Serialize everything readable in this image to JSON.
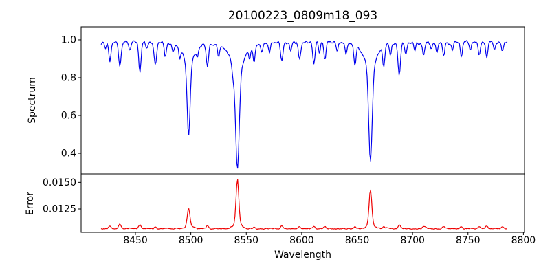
{
  "chart_data": {
    "type": "line",
    "title": "20100223_0809m18_093",
    "description": "Two stacked panels sharing one wavelength axis: a normalized stellar spectrum (blue) showing the Ca II infrared triplet absorption lines at 8498, 8542 and 8662 Angstroms plus many weak metal lines, and the corresponding error spectrum (red) with noise peaks at the strong line cores.",
    "x": {
      "label": "Wavelength",
      "lim": [
        8401,
        8801
      ],
      "data_range": [
        8419,
        8786
      ],
      "ticks": [
        {
          "v": 8450,
          "label": "8450"
        },
        {
          "v": 8500,
          "label": "8500"
        },
        {
          "v": 8550,
          "label": "8550"
        },
        {
          "v": 8600,
          "label": "8600"
        },
        {
          "v": 8650,
          "label": "8650"
        },
        {
          "v": 8700,
          "label": "8700"
        },
        {
          "v": 8750,
          "label": "8750"
        },
        {
          "v": 8800,
          "label": "8800"
        }
      ]
    },
    "panels": [
      {
        "ylabel": "Spectrum",
        "color": "#0000ee",
        "ylim": [
          0.291,
          1.069
        ],
        "yticks": [
          {
            "v": 1.0,
            "label": "1.0"
          },
          {
            "v": 0.8,
            "label": "0.8"
          },
          {
            "v": 0.6,
            "label": "0.6"
          },
          {
            "v": 0.4,
            "label": "0.4"
          }
        ],
        "continuum": 0.985,
        "noise": {
          "amp_sym": 0.009,
          "amp_dip": 0.013,
          "offset": 0.0045
        },
        "absorption_lines": [
          {
            "c": 8498,
            "d": 0.37,
            "w": 1.3
          },
          {
            "c": 8498,
            "d": 0.09,
            "w": 4.0
          },
          {
            "c": 8498,
            "d": 0.03,
            "w": 9.0
          },
          {
            "c": 8542,
            "d": 0.51,
            "w": 1.6
          },
          {
            "c": 8542,
            "d": 0.12,
            "w": 5.0
          },
          {
            "c": 8542,
            "d": 0.04,
            "w": 12.0
          },
          {
            "c": 8662,
            "d": 0.49,
            "w": 1.5
          },
          {
            "c": 8662,
            "d": 0.1,
            "w": 4.5
          },
          {
            "c": 8662,
            "d": 0.04,
            "w": 10.0
          },
          {
            "c": 8423,
            "d": 0.04,
            "w": 0.8
          },
          {
            "c": 8427,
            "d": 0.1,
            "w": 0.9
          },
          {
            "c": 8436,
            "d": 0.13,
            "w": 1.0
          },
          {
            "c": 8445,
            "d": 0.05,
            "w": 0.8
          },
          {
            "c": 8454,
            "d": 0.16,
            "w": 1.0
          },
          {
            "c": 8460,
            "d": 0.04,
            "w": 0.8
          },
          {
            "c": 8468,
            "d": 0.12,
            "w": 1.0
          },
          {
            "c": 8477,
            "d": 0.07,
            "w": 0.9
          },
          {
            "c": 8484,
            "d": 0.04,
            "w": 0.8
          },
          {
            "c": 8490,
            "d": 0.05,
            "w": 0.8
          },
          {
            "c": 8506,
            "d": 0.05,
            "w": 0.9
          },
          {
            "c": 8515,
            "d": 0.12,
            "w": 1.0
          },
          {
            "c": 8525,
            "d": 0.06,
            "w": 0.8
          },
          {
            "c": 8538,
            "d": 0.05,
            "w": 0.9
          },
          {
            "c": 8553,
            "d": 0.06,
            "w": 0.8
          },
          {
            "c": 8557,
            "d": 0.09,
            "w": 0.9
          },
          {
            "c": 8564,
            "d": 0.04,
            "w": 0.8
          },
          {
            "c": 8571,
            "d": 0.05,
            "w": 0.8
          },
          {
            "c": 8582,
            "d": 0.1,
            "w": 1.0
          },
          {
            "c": 8590,
            "d": 0.04,
            "w": 0.8
          },
          {
            "c": 8598,
            "d": 0.09,
            "w": 1.0
          },
          {
            "c": 8611,
            "d": 0.11,
            "w": 1.0
          },
          {
            "c": 8616,
            "d": 0.06,
            "w": 0.8
          },
          {
            "c": 8621,
            "d": 0.09,
            "w": 0.9
          },
          {
            "c": 8632,
            "d": 0.04,
            "w": 0.8
          },
          {
            "c": 8640,
            "d": 0.05,
            "w": 0.8
          },
          {
            "c": 8648,
            "d": 0.1,
            "w": 1.0
          },
          {
            "c": 8674,
            "d": 0.11,
            "w": 1.0
          },
          {
            "c": 8680,
            "d": 0.06,
            "w": 0.8
          },
          {
            "c": 8688,
            "d": 0.17,
            "w": 1.1
          },
          {
            "c": 8694,
            "d": 0.06,
            "w": 0.9
          },
          {
            "c": 8702,
            "d": 0.05,
            "w": 0.8
          },
          {
            "c": 8710,
            "d": 0.07,
            "w": 0.9
          },
          {
            "c": 8717,
            "d": 0.04,
            "w": 0.8
          },
          {
            "c": 8722,
            "d": 0.06,
            "w": 0.9
          },
          {
            "c": 8728,
            "d": 0.08,
            "w": 0.9
          },
          {
            "c": 8736,
            "d": 0.05,
            "w": 0.8
          },
          {
            "c": 8744,
            "d": 0.08,
            "w": 0.9
          },
          {
            "c": 8752,
            "d": 0.04,
            "w": 0.8
          },
          {
            "c": 8760,
            "d": 0.07,
            "w": 0.9
          },
          {
            "c": 8767,
            "d": 0.08,
            "w": 0.9
          },
          {
            "c": 8774,
            "d": 0.04,
            "w": 0.8
          },
          {
            "c": 8781,
            "d": 0.05,
            "w": 0.8
          }
        ]
      },
      {
        "ylabel": "Error",
        "color": "#ee0000",
        "ylim": [
          0.0103,
          0.0158
        ],
        "yticks": [
          {
            "v": 0.015,
            "label": "0.0150"
          },
          {
            "v": 0.0125,
            "label": "0.0125"
          }
        ],
        "baseline": 0.01062,
        "noise": {
          "amp_sym": 6e-05,
          "amp_bump": 0.00012
        },
        "peaks": [
          {
            "c": 8542,
            "a": 0.0042,
            "w": 1.2
          },
          {
            "c": 8542,
            "a": 0.0005,
            "w": 3.5
          },
          {
            "c": 8662,
            "a": 0.0033,
            "w": 1.2
          },
          {
            "c": 8662,
            "a": 0.0004,
            "w": 3.5
          },
          {
            "c": 8498,
            "a": 0.0017,
            "w": 1.2
          },
          {
            "c": 8498,
            "a": 0.0002,
            "w": 3.5
          },
          {
            "c": 8427,
            "a": 0.00025,
            "w": 1.0
          },
          {
            "c": 8436,
            "a": 0.00045,
            "w": 1.0
          },
          {
            "c": 8454,
            "a": 0.0004,
            "w": 1.0
          },
          {
            "c": 8468,
            "a": 0.0002,
            "w": 1.0
          },
          {
            "c": 8515,
            "a": 0.0003,
            "w": 1.0
          },
          {
            "c": 8557,
            "a": 0.0002,
            "w": 1.0
          },
          {
            "c": 8582,
            "a": 0.00025,
            "w": 1.0
          },
          {
            "c": 8598,
            "a": 0.0002,
            "w": 1.0
          },
          {
            "c": 8611,
            "a": 0.00025,
            "w": 1.0
          },
          {
            "c": 8621,
            "a": 0.0002,
            "w": 1.0
          },
          {
            "c": 8648,
            "a": 0.0002,
            "w": 1.0
          },
          {
            "c": 8674,
            "a": 0.0002,
            "w": 1.0
          },
          {
            "c": 8688,
            "a": 0.0004,
            "w": 1.0
          },
          {
            "c": 8710,
            "a": 0.0002,
            "w": 1.0
          },
          {
            "c": 8728,
            "a": 0.0002,
            "w": 1.0
          },
          {
            "c": 8744,
            "a": 0.0002,
            "w": 1.0
          },
          {
            "c": 8760,
            "a": 0.0002,
            "w": 1.0
          },
          {
            "c": 8767,
            "a": 0.00025,
            "w": 1.0
          },
          {
            "c": 8781,
            "a": 0.0002,
            "w": 1.0
          }
        ]
      }
    ]
  }
}
